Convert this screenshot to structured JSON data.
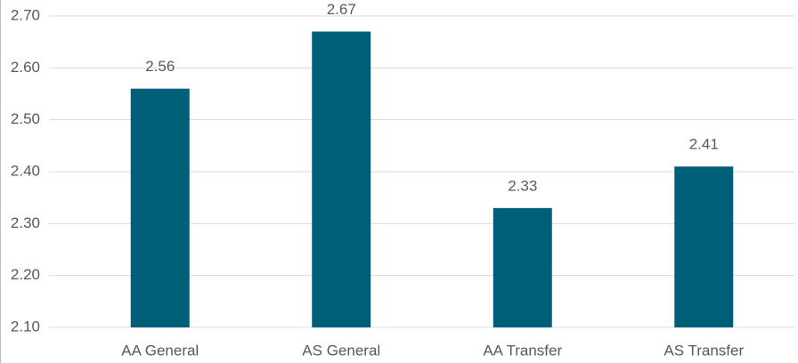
{
  "chart_data": {
    "type": "bar",
    "categories": [
      "AA General",
      "AS General",
      "AA Transfer",
      "AS Transfer"
    ],
    "values": [
      2.56,
      2.67,
      2.33,
      2.41
    ],
    "color": "#005f78",
    "ylim": [
      2.1,
      2.7
    ],
    "yticks": [
      {
        "value": 2.1,
        "label": "2.10"
      },
      {
        "value": 2.2,
        "label": "2.20"
      },
      {
        "value": 2.3,
        "label": "2.30"
      },
      {
        "value": 2.4,
        "label": "2.40"
      },
      {
        "value": 2.5,
        "label": "2.50"
      },
      {
        "value": 2.6,
        "label": "2.60"
      },
      {
        "value": 2.7,
        "label": "2.70"
      }
    ],
    "grid": true
  }
}
